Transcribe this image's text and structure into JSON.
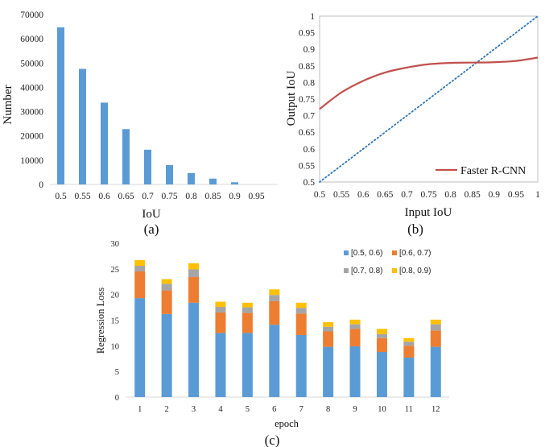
{
  "chart_data": [
    {
      "type": "bar",
      "panel_label": "(a)",
      "xlabel": "IoU",
      "ylabel": "Number",
      "categories": [
        "0.5",
        "0.55",
        "0.6",
        "0.65",
        "0.7",
        "0.75",
        "0.8",
        "0.85",
        "0.9",
        "0.95"
      ],
      "values": [
        64700,
        47600,
        33700,
        22800,
        14300,
        8000,
        4700,
        2400,
        900,
        0
      ],
      "ylim": [
        0,
        70000
      ],
      "yticks": [
        "0",
        "10000",
        "20000",
        "30000",
        "40000",
        "50000",
        "60000",
        "70000"
      ],
      "color": "#5b9bd5",
      "grid": false
    },
    {
      "type": "line",
      "panel_label": "(b)",
      "xlabel": "Input  IoU",
      "ylabel": "Output  IoU",
      "xlim": [
        0.5,
        1
      ],
      "ylim": [
        0.5,
        1
      ],
      "xticks": [
        "0.5",
        "0.55",
        "0.6",
        "0.65",
        "0.7",
        "0.75",
        "0.8",
        "0.85",
        "0.9",
        "0.95",
        "1"
      ],
      "yticks": [
        "0.5",
        "0.55",
        "0.6",
        "0.65",
        "0.7",
        "0.75",
        "0.8",
        "0.85",
        "0.9",
        "0.95",
        "1"
      ],
      "series": [
        {
          "name": "Faster R-CNN",
          "color": "#c0504d",
          "x": [
            0.5,
            0.55,
            0.6,
            0.65,
            0.7,
            0.75,
            0.8,
            0.85,
            0.9,
            0.95,
            1.0
          ],
          "y": [
            0.72,
            0.77,
            0.805,
            0.83,
            0.845,
            0.855,
            0.859,
            0.86,
            0.861,
            0.865,
            0.875
          ]
        },
        {
          "color": "#2e75b6",
          "dotted": true,
          "x": [
            0.5,
            1.0
          ],
          "y": [
            0.5,
            1.0
          ]
        }
      ],
      "legend_position": "bottom-right",
      "grid": false
    },
    {
      "type": "bar",
      "stacked": true,
      "panel_label": "(c)",
      "xlabel": "epoch",
      "ylabel": "Regression Loss",
      "categories": [
        "1",
        "2",
        "3",
        "4",
        "5",
        "6",
        "7",
        "8",
        "9",
        "10",
        "11",
        "12"
      ],
      "ylim": [
        0,
        30
      ],
      "yticks": [
        "0",
        "5",
        "10",
        "15",
        "20",
        "25",
        "30"
      ],
      "series": [
        {
          "name": "[0.5, 0.6)",
          "color": "#5b9bd5",
          "values": [
            19.3,
            16.2,
            18.4,
            12.5,
            12.5,
            14.1,
            12.1,
            9.8,
            9.9,
            8.8,
            7.7,
            9.8
          ]
        },
        {
          "name": "[0.6, 0.7)",
          "color": "#ed7d31",
          "values": [
            5.2,
            4.6,
            5.0,
            4.0,
            3.9,
            4.6,
            4.2,
            3.0,
            3.4,
            2.7,
            2.3,
            3.2
          ]
        },
        {
          "name": "[0.7, 0.8)",
          "color": "#a5a5a5",
          "values": [
            1.1,
            1.3,
            1.5,
            1.1,
            1.1,
            1.2,
            1.1,
            0.9,
            0.9,
            0.8,
            0.8,
            1.2
          ]
        },
        {
          "name": "[0.8, 0.9)",
          "color": "#ffc000",
          "values": [
            1.1,
            0.9,
            1.2,
            1.0,
            0.9,
            1.1,
            1.0,
            0.9,
            0.9,
            1.0,
            0.7,
            0.9
          ]
        }
      ],
      "legend_position": "top-right",
      "grid": false
    }
  ]
}
